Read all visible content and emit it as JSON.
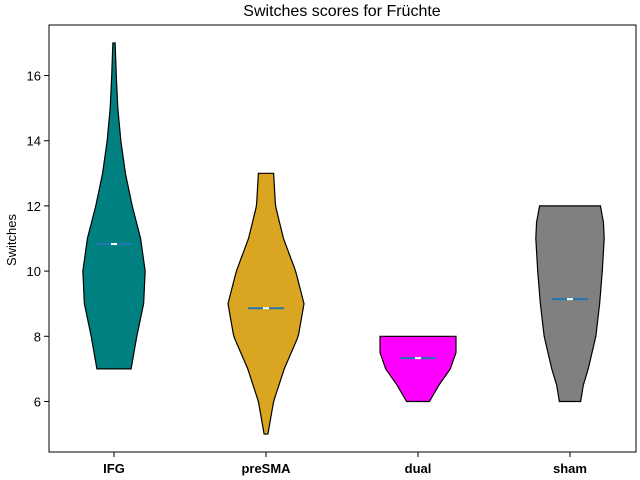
{
  "chart_data": {
    "type": "violin",
    "title": "Switches scores for Früchte",
    "xlabel": "",
    "ylabel": "Switches",
    "ylim": [
      4.45,
      17.55
    ],
    "yticks": [
      6,
      8,
      10,
      12,
      14,
      16
    ],
    "grid": false,
    "categories": [
      "IFG",
      "preSMA",
      "dual",
      "sham"
    ],
    "series": [
      {
        "category": "IFG",
        "color": "#008080",
        "min": 7,
        "max": 17,
        "mean": 10.83,
        "density": [
          [
            7,
            0.45
          ],
          [
            8,
            0.6
          ],
          [
            9,
            0.78
          ],
          [
            10,
            0.82
          ],
          [
            11,
            0.7
          ],
          [
            12,
            0.48
          ],
          [
            13,
            0.3
          ],
          [
            14,
            0.18
          ],
          [
            15,
            0.1
          ],
          [
            16,
            0.06
          ],
          [
            17,
            0.03
          ]
        ]
      },
      {
        "category": "preSMA",
        "color": "#DAA520",
        "min": 5,
        "max": 13,
        "mean": 8.86,
        "density": [
          [
            5,
            0.05
          ],
          [
            6,
            0.2
          ],
          [
            7,
            0.48
          ],
          [
            8,
            0.85
          ],
          [
            9,
            1.0
          ],
          [
            10,
            0.78
          ],
          [
            11,
            0.46
          ],
          [
            12,
            0.25
          ],
          [
            13,
            0.2
          ]
        ]
      },
      {
        "category": "dual",
        "color": "#FF00FF",
        "min": 6,
        "max": 8,
        "mean": 7.33,
        "density": [
          [
            6,
            0.3
          ],
          [
            6.5,
            0.55
          ],
          [
            7,
            0.85
          ],
          [
            7.5,
            1.0
          ],
          [
            8,
            1.0
          ]
        ]
      },
      {
        "category": "sham",
        "color": "#808080",
        "min": 6,
        "max": 12,
        "mean": 9.14,
        "density": [
          [
            6,
            0.28
          ],
          [
            6.5,
            0.35
          ],
          [
            7,
            0.48
          ],
          [
            8,
            0.68
          ],
          [
            9,
            0.78
          ],
          [
            10,
            0.85
          ],
          [
            11,
            0.9
          ],
          [
            11.5,
            0.88
          ],
          [
            12,
            0.8
          ]
        ]
      }
    ]
  }
}
